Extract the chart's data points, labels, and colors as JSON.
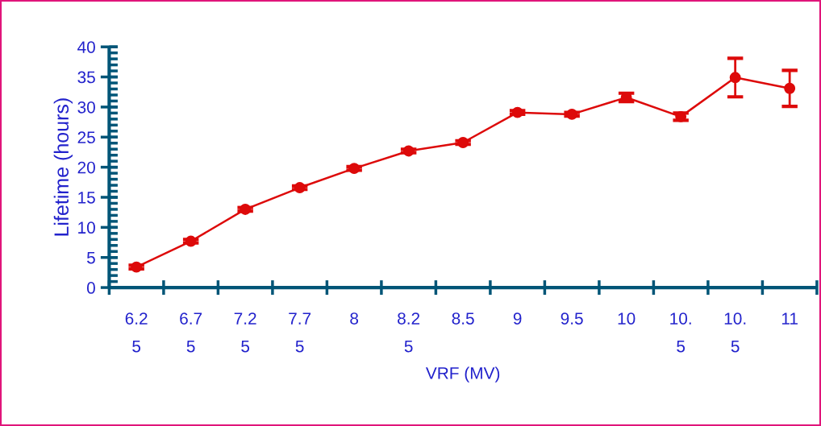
{
  "chart_data": {
    "type": "line",
    "xlabel": "VRF (MV)",
    "ylabel": "Lifetime (hours)",
    "categories": [
      "6.25",
      "6.75",
      "7.25",
      "7.75",
      "8",
      "8.25",
      "8.5",
      "9",
      "9.5",
      "10",
      "10.5",
      "10.5",
      "11"
    ],
    "series": [
      {
        "color": "#dd0a0a",
        "values": [
          3.4,
          7.7,
          13.0,
          16.6,
          19.8,
          22.7,
          24.1,
          29.1,
          28.8,
          31.6,
          28.4,
          34.9,
          33.1
        ],
        "errors": [
          0.3,
          0.3,
          0.3,
          0.3,
          0.3,
          0.3,
          0.3,
          0.3,
          0.3,
          0.7,
          0.6,
          3.2,
          3.0
        ]
      }
    ],
    "ylim": [
      0,
      40
    ],
    "yticks": [
      0,
      5,
      10,
      15,
      20,
      25,
      30,
      35,
      40
    ],
    "marker": "circle",
    "line_style": "solid",
    "grid": false,
    "legend": false
  }
}
